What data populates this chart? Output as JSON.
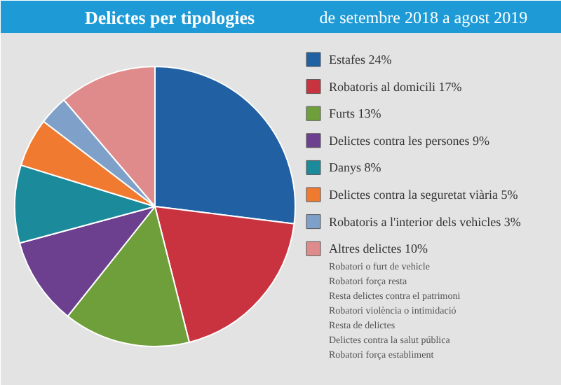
{
  "chart_data": {
    "type": "pie",
    "title": "Delictes per tipologies",
    "subtitle": "de setembre 2018 a agost 2019",
    "categories": [
      "Estafes",
      "Robatoris al domicili",
      "Furts",
      "Delictes contra les persones",
      "Danys",
      "Delictes contra la seguretat viària",
      "Robatoris a l'interior dels vehicles",
      "Altres delictes"
    ],
    "values": [
      24,
      17,
      13,
      9,
      8,
      5,
      3,
      10
    ],
    "value_labels": [
      "24%",
      "17%",
      "13%",
      "9%",
      "8%",
      "5%",
      "3%",
      "10%"
    ],
    "colors": [
      "#2161a3",
      "#c9333f",
      "#6f9f3b",
      "#6c3f8f",
      "#1b8b9b",
      "#f07a30",
      "#7fa1c9",
      "#e08b8b"
    ],
    "legend": "right",
    "annotations": [
      "Robatori o furt de vehicle",
      "Robatori  força resta",
      "Resta delictes contra el patrimoni",
      "Robatori  violència o intimidació",
      "Resta de delictes",
      "Delictes contra la salut pública",
      "Robatori força establiment"
    ]
  }
}
